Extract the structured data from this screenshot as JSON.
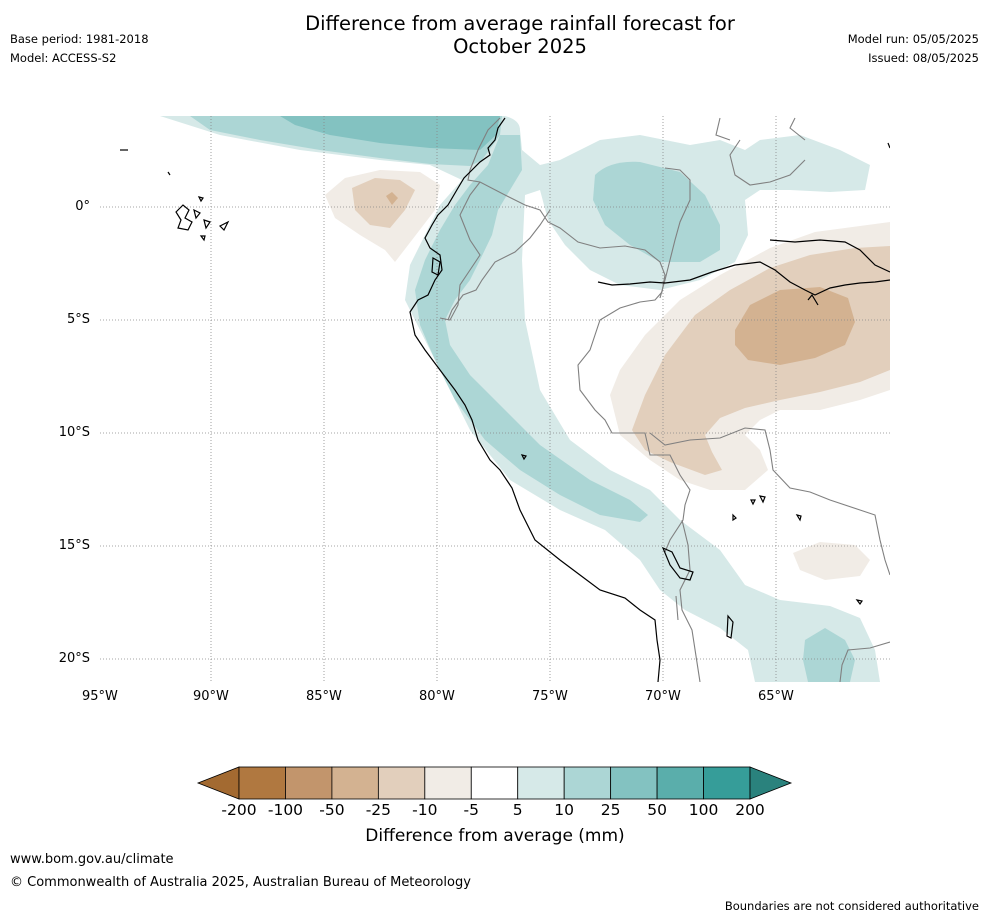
{
  "header": {
    "title_line1": "Difference from average rainfall forecast for",
    "title_line2": "October 2025",
    "base_period": "Base period: 1981-2018",
    "model": "Model: ACCESS-S2",
    "model_run": "Model run: 05/05/2025",
    "issued": "Issued: 08/05/2025"
  },
  "map": {
    "lat_labels": [
      "0°",
      "5°S",
      "10°S",
      "15°S",
      "20°S"
    ],
    "lon_labels": [
      "95°W",
      "90°W",
      "85°W",
      "80°W",
      "75°W",
      "70°W",
      "65°W"
    ],
    "legend_title": "Difference from average (mm)",
    "legend_ticks": [
      "-200",
      "-100",
      "-50",
      "-25",
      "-10",
      "-5",
      "5",
      "10",
      "25",
      "50",
      "100",
      "200"
    ],
    "legend_colors": [
      "#a36a31",
      "#b07840",
      "#c2956c",
      "#d3b291",
      "#e2cfbc",
      "#f1ece6",
      "#ffffff",
      "#d6e9e8",
      "#acd6d5",
      "#83c2c1",
      "#5aaeab",
      "#369d99",
      "#2a827d"
    ],
    "grid_style": "dotted"
  },
  "footer": {
    "website": "www.bom.gov.au/climate",
    "copyright": "© Commonwealth of Australia 2025, Australian Bureau of Meteorology",
    "disclaimer": "Boundaries are not considered authoritative"
  }
}
